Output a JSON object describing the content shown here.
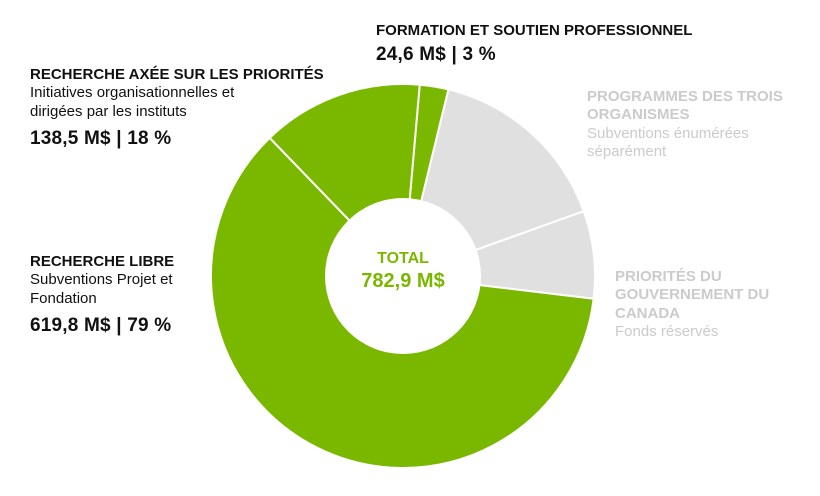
{
  "colors": {
    "green": "#7ab800",
    "grey": "#e0e0e0",
    "separator": "#ffffff",
    "muted_text": "#cbcbcb",
    "dark_text": "#111111"
  },
  "chart_data": {
    "type": "pie",
    "total_label": "TOTAL",
    "total_value": "782,9 M$",
    "slices": [
      {
        "name": "FORMATION ET SOUTIEN PROFESSIONNEL",
        "value": 24.6,
        "value_label": "24,6 M$ | 3 %",
        "color": "#7ab800",
        "grey": false
      },
      {
        "name": "PROGRAMMES DES TROIS ORGANISMES",
        "description": "Subventions énumérées séparément",
        "value": 160,
        "color": "#e0e0e0",
        "grey": true
      },
      {
        "name": "PRIORITÉS DU GOUVERNEMENT DU CANADA",
        "description": "Fonds réservés",
        "value": 75,
        "color": "#e0e0e0",
        "grey": true
      },
      {
        "name": "RECHERCHE LIBRE",
        "description": "Subventions Projet et Fondation",
        "value": 619.8,
        "value_label": "619,8 M$ | 79 %",
        "color": "#7ab800",
        "grey": false
      },
      {
        "name": "RECHERCHE AXÉE SUR LES PRIORITÉS",
        "description": "Initiatives organisationnelles et dirigées par les instituts",
        "value": 138.5,
        "value_label": "138,5 M$ | 18 %",
        "color": "#7ab800",
        "grey": false
      }
    ]
  },
  "labels": {
    "formation": {
      "title": "FORMATION ET SOUTIEN PROFESSIONNEL",
      "value": "24,6 M$ | 3 %"
    },
    "programmes": {
      "title_line1": "PROGRAMMES DES TROIS",
      "title_line2": "ORGANISMES",
      "desc_line1": "Subventions énumérées",
      "desc_line2": "séparément"
    },
    "priorites": {
      "title_line1": "PRIORITÉS DU",
      "title_line2": "GOUVERNEMENT DU",
      "title_line3": "CANADA",
      "desc": "Fonds réservés"
    },
    "recherche_axee": {
      "title": "RECHERCHE AXÉE SUR LES PRIORITÉS",
      "desc_line1": "Initiatives organisationnelles et",
      "desc_line2": "dirigées par les instituts",
      "value": "138,5 M$ | 18 %"
    },
    "recherche_libre": {
      "title": "RECHERCHE LIBRE",
      "desc_line1": "Subventions Projet et",
      "desc_line2": "Fondation",
      "value": "619,8 M$ | 79 %"
    }
  }
}
